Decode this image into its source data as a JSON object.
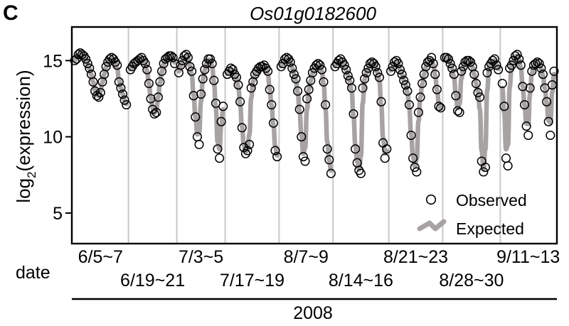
{
  "panel_label": "C",
  "chart_data": {
    "type": "scatter",
    "title": "Os01g0182600",
    "ylabel_main": "log",
    "ylabel_sub": "2",
    "ylabel_rest": "(expression)",
    "xlabel": "date",
    "year": "2008",
    "ylim": [
      3,
      17.2
    ],
    "yticks": [
      5,
      10,
      15
    ],
    "grid": "vertical separators between sampling periods",
    "legend": {
      "placement": "bottom-right",
      "entries": [
        {
          "name": "Observed",
          "marker": "open-circle"
        },
        {
          "name": "Expected",
          "marker": "thick-gray-line"
        }
      ]
    },
    "colors": {
      "observed": "#000000",
      "expected": "#a8a3a3",
      "separator": "#c8c8c8",
      "axis": "#000000"
    },
    "periods": [
      {
        "label": "6/5~7",
        "row": 1,
        "observed": [
          15.0,
          15.1,
          15.4,
          15.5,
          15.4,
          15.3,
          15.1,
          14.8,
          14.5,
          14.1,
          13.6,
          13.0,
          12.7,
          12.6,
          12.9,
          13.6,
          14.1,
          14.6,
          14.9,
          15.1,
          15.2,
          15.1,
          14.9,
          14.7,
          13.6,
          13.2,
          12.8,
          12.4,
          12.1
        ]
      },
      {
        "label": "6/19~21",
        "row": 2,
        "observed": [
          14.4,
          14.6,
          14.8,
          14.9,
          15.0,
          15.1,
          15.2,
          15.0,
          14.8,
          14.4,
          13.5,
          12.5,
          11.8,
          11.5,
          11.6,
          12.6,
          13.6,
          14.3,
          14.8,
          15.1,
          15.2,
          15.3,
          15.3,
          15.2,
          14.8
        ]
      },
      {
        "label": "7/3~5",
        "row": 1,
        "observed": [
          14.2,
          14.7,
          15.0,
          15.3,
          15.4,
          15.2,
          14.6,
          14.3,
          12.7,
          11.3,
          10.0,
          9.5,
          12.8,
          13.8,
          14.4,
          14.8,
          15.1,
          15.1,
          14.8,
          13.7,
          12.2,
          9.2,
          8.6,
          11.0,
          12.0
        ]
      },
      {
        "label": "7/17~19",
        "row": 2,
        "observed": [
          14.1,
          14.3,
          14.5,
          14.4,
          14.1,
          13.9,
          13.4,
          12.3,
          10.6,
          9.3,
          8.9,
          9.1,
          9.5,
          13.2,
          13.6,
          14.1,
          14.3,
          14.5,
          14.6,
          14.6,
          14.7,
          14.5,
          14.3,
          13.1,
          12.1,
          10.9,
          9.1,
          8.7
        ]
      },
      {
        "label": "8/7~9",
        "row": 1,
        "observed": [
          14.6,
          14.8,
          15.1,
          15.2,
          15.1,
          14.9,
          14.5,
          14.1,
          13.8,
          13.0,
          11.8,
          10.0,
          8.7,
          8.4,
          12.5,
          13.1,
          13.7,
          14.2,
          14.5,
          14.7,
          14.8,
          14.7,
          14.4,
          13.6,
          12.1,
          9.2,
          8.5,
          7.6
        ]
      },
      {
        "label": "8/14~16",
        "row": 2,
        "observed": [
          14.6,
          14.8,
          15.0,
          15.1,
          14.9,
          14.7,
          14.4,
          14.0,
          13.7,
          13.2,
          11.5,
          9.2,
          8.3,
          7.8,
          7.6,
          13.2,
          13.8,
          14.2,
          14.5,
          14.8,
          14.9,
          14.8,
          14.6,
          14.2,
          13.9,
          12.3,
          9.6,
          8.6,
          9.2
        ]
      },
      {
        "label": "8/21~23",
        "row": 1,
        "observed": [
          14.3,
          14.6,
          14.9,
          15.0,
          14.8,
          14.4,
          14.1,
          13.7,
          13.4,
          13.0,
          12.1,
          10.1,
          8.6,
          8.0,
          7.7,
          11.6,
          12.6,
          13.5,
          14.1,
          14.6,
          14.9,
          15.0,
          15.2,
          14.8,
          14.1,
          13.1,
          12.0,
          11.9
        ]
      },
      {
        "label": "8/28~30",
        "row": 2,
        "observed": [
          15.2,
          15.2,
          15.1,
          14.8,
          14.5,
          14.1,
          12.7,
          11.7,
          11.6,
          14.3,
          14.6,
          14.9,
          15.0,
          15.0,
          14.9,
          14.6,
          14.1,
          13.5,
          12.9,
          12.6,
          8.4,
          7.7,
          8.0,
          14.2,
          14.6,
          14.8,
          15.0,
          15.1,
          14.7,
          14.4
        ]
      },
      {
        "label": "9/11~13",
        "row": 1,
        "observed": [
          13.5,
          12.0,
          8.6,
          8.1,
          14.5,
          14.7,
          15.0,
          15.3,
          15.4,
          15.1,
          14.7,
          13.3,
          12.1,
          10.7,
          10.1,
          13.2,
          14.3,
          14.7,
          14.8,
          14.9,
          14.8,
          14.5,
          14.1,
          13.2,
          12.3,
          11.0,
          10.1,
          13.4,
          14.3
        ]
      }
    ]
  }
}
